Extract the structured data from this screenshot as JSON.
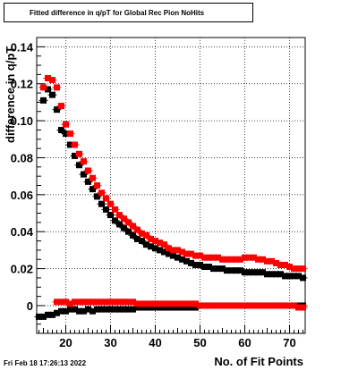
{
  "chart_data": {
    "type": "scatter",
    "title": "Fitted difference in q/pT for Global Rec Pion NoHits",
    "xlabel": "No. of Fit Points",
    "ylabel": "difference in q/pT",
    "xlim": [
      13.5,
      73.5
    ],
    "ylim": [
      -0.015,
      0.145
    ],
    "x_ticks": [
      20,
      30,
      40,
      50,
      60,
      70
    ],
    "y_ticks": [
      0,
      0.02,
      0.04,
      0.06,
      0.08,
      0.1,
      0.12,
      0.14
    ],
    "grid": true,
    "series": [
      {
        "color": "#000000",
        "marker": "square",
        "x": [
          15,
          16,
          17,
          18,
          19,
          20,
          21,
          22,
          23,
          24,
          25,
          26,
          27,
          28,
          29,
          30,
          31,
          32,
          33,
          34,
          35,
          36,
          37,
          38,
          39,
          40,
          41,
          42,
          43,
          44,
          45,
          46,
          47,
          48,
          49,
          50,
          51,
          52,
          53,
          54,
          55,
          56,
          57,
          58,
          59,
          60,
          61,
          62,
          63,
          64,
          65,
          66,
          67,
          68,
          69,
          70,
          71,
          72,
          73
        ],
        "y": [
          0.111,
          0.117,
          0.114,
          0.106,
          0.095,
          0.093,
          0.087,
          0.081,
          0.076,
          0.071,
          0.067,
          0.063,
          0.059,
          0.055,
          0.052,
          0.049,
          0.046,
          0.044,
          0.042,
          0.04,
          0.038,
          0.036,
          0.035,
          0.033,
          0.032,
          0.031,
          0.03,
          0.029,
          0.028,
          0.027,
          0.026,
          0.025,
          0.024,
          0.023,
          0.022,
          0.022,
          0.021,
          0.021,
          0.02,
          0.02,
          0.02,
          0.019,
          0.019,
          0.019,
          0.019,
          0.018,
          0.018,
          0.018,
          0.018,
          0.018,
          0.017,
          0.017,
          0.017,
          0.017,
          0.016,
          0.016,
          0.016,
          0.016,
          0.015
        ]
      },
      {
        "color": "#ff0000",
        "marker": "square",
        "x": [
          15,
          16,
          17,
          18,
          19,
          20,
          21,
          22,
          23,
          24,
          25,
          26,
          27,
          28,
          29,
          30,
          31,
          32,
          33,
          34,
          35,
          36,
          37,
          38,
          39,
          40,
          41,
          42,
          43,
          44,
          45,
          46,
          47,
          48,
          49,
          50,
          51,
          52,
          53,
          54,
          55,
          56,
          57,
          58,
          59,
          60,
          61,
          62,
          63,
          64,
          65,
          66,
          67,
          68,
          69,
          70,
          71,
          72,
          73
        ],
        "y": [
          0.118,
          0.123,
          0.122,
          0.118,
          0.108,
          0.098,
          0.093,
          0.087,
          0.082,
          0.078,
          0.073,
          0.069,
          0.065,
          0.061,
          0.058,
          0.055,
          0.052,
          0.049,
          0.047,
          0.045,
          0.043,
          0.041,
          0.039,
          0.038,
          0.036,
          0.035,
          0.034,
          0.033,
          0.031,
          0.03,
          0.03,
          0.029,
          0.028,
          0.028,
          0.027,
          0.027,
          0.026,
          0.026,
          0.026,
          0.026,
          0.025,
          0.025,
          0.025,
          0.025,
          0.025,
          0.026,
          0.026,
          0.026,
          0.025,
          0.025,
          0.024,
          0.024,
          0.023,
          0.022,
          0.022,
          0.021,
          0.02,
          0.02,
          0.02
        ]
      },
      {
        "color": "#000000",
        "marker": "square",
        "x": [
          14,
          15,
          16,
          17,
          18,
          19,
          20,
          21,
          22,
          23,
          24,
          25,
          26,
          27,
          28,
          29,
          30,
          31,
          32,
          33,
          34,
          35,
          36,
          37,
          38,
          39,
          40,
          41,
          42,
          43,
          44,
          45,
          46,
          47,
          48,
          49,
          50,
          51,
          52,
          53,
          54,
          55,
          56,
          57,
          58,
          59,
          60,
          61,
          62,
          63,
          64,
          65,
          66,
          67,
          68,
          69,
          70,
          71,
          72,
          73
        ],
        "y": [
          -0.006,
          -0.006,
          -0.005,
          -0.005,
          -0.004,
          -0.003,
          -0.003,
          -0.002,
          -0.002,
          -0.003,
          -0.003,
          -0.002,
          -0.003,
          -0.002,
          -0.002,
          -0.002,
          -0.002,
          -0.002,
          -0.002,
          -0.002,
          -0.002,
          -0.002,
          -0.001,
          -0.001,
          -0.001,
          -0.001,
          -0.001,
          -0.001,
          -0.001,
          -0.001,
          -0.001,
          -0.001,
          -0.001,
          -0.001,
          -0.001,
          -0.001,
          0.0,
          0.0,
          0.0,
          0.0,
          0.0,
          0.0,
          0.0,
          0.0,
          0.0,
          0.0,
          0.0,
          0.0,
          0.0,
          0.0,
          0.0,
          0.0,
          0.0,
          0.0,
          0.0,
          0.0,
          0.0,
          0.0,
          0.0,
          0.0
        ]
      },
      {
        "color": "#ff0000",
        "marker": "square",
        "x": [
          18,
          19,
          20,
          21,
          22,
          23,
          24,
          25,
          26,
          27,
          28,
          29,
          30,
          31,
          32,
          33,
          34,
          35,
          36,
          37,
          38,
          39,
          40,
          41,
          42,
          43,
          44,
          45,
          46,
          47,
          48,
          49,
          50,
          51,
          52,
          53,
          54,
          55,
          56,
          57,
          58,
          59,
          60,
          61,
          62,
          63,
          64,
          65,
          66,
          67,
          68,
          69,
          70,
          71,
          72,
          73
        ],
        "y": [
          0.002,
          0.002,
          0.002,
          0.001,
          0.002,
          0.002,
          0.002,
          0.002,
          0.002,
          0.002,
          0.002,
          0.002,
          0.002,
          0.002,
          0.002,
          0.002,
          0.002,
          0.002,
          0.001,
          0.001,
          0.001,
          0.001,
          0.001,
          0.001,
          0.001,
          0.001,
          0.001,
          0.001,
          0.001,
          0.001,
          0.001,
          0.001,
          0.0,
          0.0,
          0.0,
          0.0,
          0.0,
          0.0,
          0.0,
          0.0,
          0.0,
          0.0,
          0.0,
          0.0,
          0.0,
          0.0,
          0.0,
          0.0,
          0.0,
          0.0,
          0.0,
          0.0,
          0.0,
          0.0,
          -0.001,
          -0.001
        ]
      }
    ]
  },
  "footer": {
    "timestamp": "Fri Feb 18 17:26:13 2022"
  }
}
